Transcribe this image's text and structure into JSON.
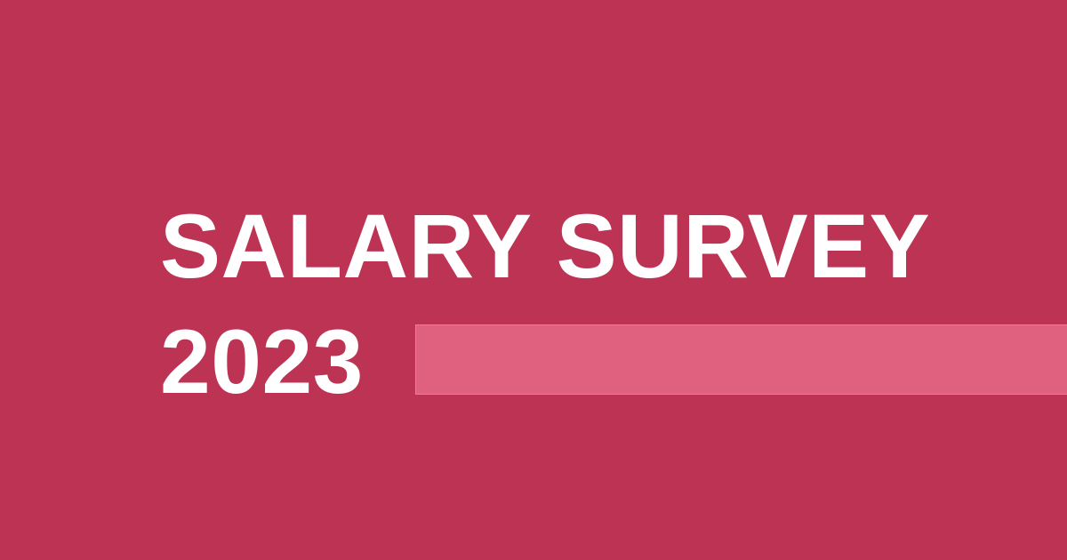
{
  "title": {
    "line1": "SALARY SURVEY",
    "line2": "2023"
  },
  "colors": {
    "background": "#bc3354",
    "accent_bar": "#e0607f",
    "text": "#ffffff"
  }
}
